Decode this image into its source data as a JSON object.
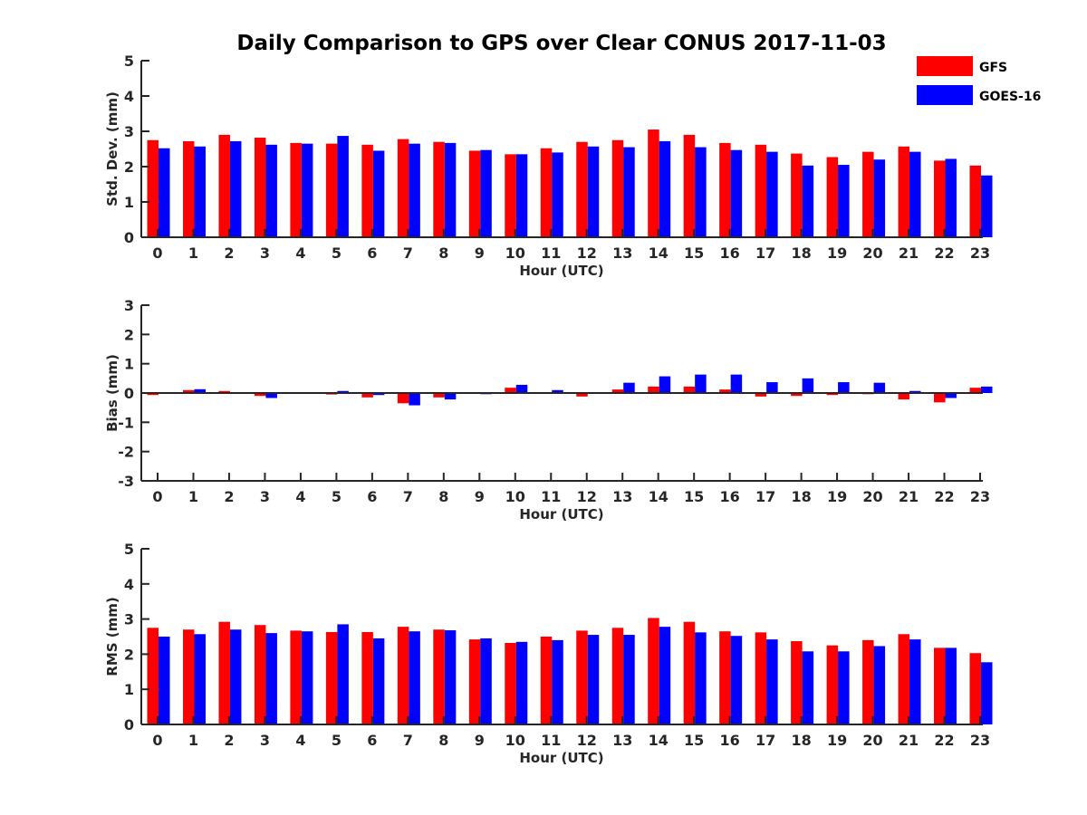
{
  "figure": {
    "title": "Daily Comparison to GPS over Clear CONUS 2017-11-03",
    "colors": {
      "GFS": "#ff0000",
      "GOES-16": "#0000ff",
      "axis": "#262626"
    },
    "legend": {
      "placement": "top-right",
      "entries": [
        "GFS",
        "GOES-16"
      ]
    }
  },
  "chart_data": [
    {
      "type": "bar",
      "title": "",
      "xlabel": "Hour (UTC)",
      "ylabel": "Std. Dev. (mm)",
      "ylim": [
        0,
        5
      ],
      "yticks": [
        0,
        1,
        2,
        3,
        4,
        5
      ],
      "grid": false,
      "categories": [
        "0",
        "1",
        "2",
        "3",
        "4",
        "5",
        "6",
        "7",
        "8",
        "9",
        "10",
        "11",
        "12",
        "13",
        "14",
        "15",
        "16",
        "17",
        "18",
        "19",
        "20",
        "21",
        "22",
        "23"
      ],
      "series": [
        {
          "name": "GFS",
          "values": [
            2.75,
            2.72,
            2.9,
            2.82,
            2.67,
            2.65,
            2.62,
            2.78,
            2.7,
            2.45,
            2.35,
            2.52,
            2.7,
            2.75,
            3.05,
            2.9,
            2.67,
            2.62,
            2.37,
            2.27,
            2.42,
            2.57,
            2.17,
            2.03
          ]
        },
        {
          "name": "GOES-16",
          "values": [
            2.52,
            2.57,
            2.72,
            2.62,
            2.65,
            2.87,
            2.45,
            2.65,
            2.67,
            2.47,
            2.35,
            2.4,
            2.57,
            2.55,
            2.72,
            2.55,
            2.47,
            2.42,
            2.03,
            2.05,
            2.2,
            2.42,
            2.22,
            1.75
          ]
        }
      ]
    },
    {
      "type": "bar",
      "title": "",
      "xlabel": "Hour (UTC)",
      "ylabel": "Bias (mm)",
      "ylim": [
        -3,
        3
      ],
      "yticks": [
        -3,
        -2,
        -1,
        0,
        1,
        2,
        3
      ],
      "grid": false,
      "categories": [
        "0",
        "1",
        "2",
        "3",
        "4",
        "5",
        "6",
        "7",
        "8",
        "9",
        "10",
        "11",
        "12",
        "13",
        "14",
        "15",
        "16",
        "17",
        "18",
        "19",
        "20",
        "21",
        "22",
        "23"
      ],
      "series": [
        {
          "name": "GFS",
          "values": [
            -0.07,
            0.1,
            0.07,
            -0.1,
            0.02,
            -0.05,
            -0.15,
            -0.35,
            -0.15,
            -0.02,
            0.18,
            0.02,
            -0.12,
            0.12,
            0.22,
            0.22,
            0.12,
            -0.12,
            -0.1,
            -0.07,
            -0.04,
            -0.22,
            -0.32,
            0.18
          ]
        },
        {
          "name": "GOES-16",
          "values": [
            0.0,
            0.13,
            0.03,
            -0.17,
            0.01,
            0.07,
            -0.07,
            -0.42,
            -0.22,
            -0.04,
            0.28,
            0.1,
            -0.02,
            0.35,
            0.57,
            0.63,
            0.63,
            0.37,
            0.5,
            0.37,
            0.35,
            0.07,
            -0.17,
            0.22
          ]
        }
      ]
    },
    {
      "type": "bar",
      "title": "",
      "xlabel": "Hour (UTC)",
      "ylabel": "RMS (mm)",
      "ylim": [
        0,
        5
      ],
      "yticks": [
        0,
        1,
        2,
        3,
        4,
        5
      ],
      "grid": false,
      "categories": [
        "0",
        "1",
        "2",
        "3",
        "4",
        "5",
        "6",
        "7",
        "8",
        "9",
        "10",
        "11",
        "12",
        "13",
        "14",
        "15",
        "16",
        "17",
        "18",
        "19",
        "20",
        "21",
        "22",
        "23"
      ],
      "series": [
        {
          "name": "GFS",
          "values": [
            2.75,
            2.7,
            2.92,
            2.83,
            2.67,
            2.63,
            2.63,
            2.78,
            2.7,
            2.42,
            2.32,
            2.5,
            2.67,
            2.75,
            3.03,
            2.92,
            2.65,
            2.62,
            2.37,
            2.25,
            2.4,
            2.57,
            2.18,
            2.03
          ]
        },
        {
          "name": "GOES-16",
          "values": [
            2.5,
            2.57,
            2.7,
            2.6,
            2.65,
            2.85,
            2.45,
            2.65,
            2.68,
            2.45,
            2.35,
            2.4,
            2.55,
            2.55,
            2.78,
            2.62,
            2.52,
            2.42,
            2.08,
            2.08,
            2.23,
            2.42,
            2.18,
            1.77
          ]
        }
      ]
    }
  ]
}
